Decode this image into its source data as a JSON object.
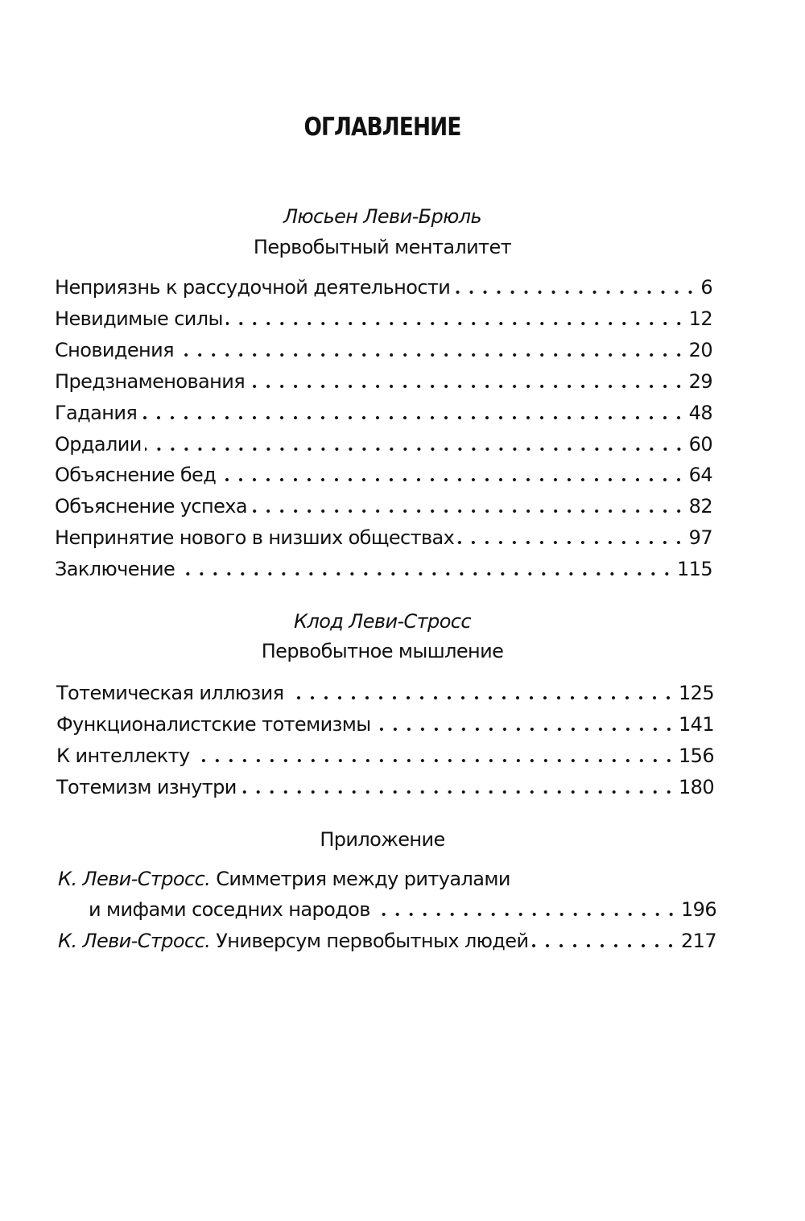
{
  "title": "ОГЛАВЛЕНИЕ",
  "part1": {
    "author": "Люсьен Леви-Брюль",
    "work": "Первобытный менталитет",
    "entries": [
      {
        "label": "Неприязнь к рассудочной деятельности",
        "page": "6"
      },
      {
        "label": "Невидимые силы",
        "page": "12"
      },
      {
        "label": "Сновидения",
        "page": "20"
      },
      {
        "label": "Предзнаменования",
        "page": "29"
      },
      {
        "label": "Гадания",
        "page": "48"
      },
      {
        "label": "Ордалии",
        "page": "60"
      },
      {
        "label": "Объяснение бед",
        "page": "64"
      },
      {
        "label": "Объяснение успеха",
        "page": "82"
      },
      {
        "label": "Непринятие нового в низших обществах",
        "page": "97"
      },
      {
        "label": "Заключение",
        "page": "115"
      }
    ]
  },
  "part2": {
    "author": "Клод Леви-Стросс",
    "work": "Первобытное мышление",
    "entries": [
      {
        "label": "Тотемическая иллюзия",
        "page": "125"
      },
      {
        "label": "Функционалистские тотемизмы",
        "page": "141"
      },
      {
        "label": "К интеллекту",
        "page": "156"
      },
      {
        "label": "Тотемизм изнутри",
        "page": "180"
      }
    ]
  },
  "appendix": {
    "heading": "Приложение",
    "entries": [
      {
        "author": "К. Леви-Стросс.",
        "label_line1": "Симметрия между ритуалами",
        "label_line2": "и мифами соседних народов",
        "page": "196"
      },
      {
        "author": "К. Леви-Стросс.",
        "label": "Универсум первобытных людей",
        "page": "217"
      }
    ]
  }
}
